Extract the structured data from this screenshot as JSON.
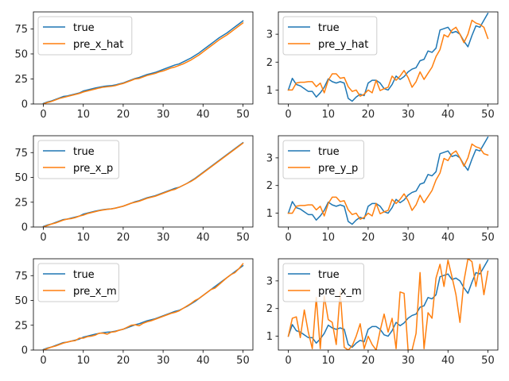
{
  "chart_data": [
    {
      "type": "line",
      "xlim": [
        -2.5,
        52.5
      ],
      "ylim": [
        0,
        92
      ],
      "xticks": [
        0,
        10,
        20,
        30,
        40,
        50
      ],
      "yticks": [
        0,
        25,
        50,
        75
      ],
      "legend": "top-left",
      "grid": false,
      "series": [
        {
          "name": "true",
          "color": "#1f77b4",
          "values": [
            0.5,
            2,
            3,
            4.5,
            6,
            7.5,
            8,
            9,
            10,
            11,
            13,
            14,
            15,
            16,
            16.8,
            17.5,
            18,
            18.3,
            19,
            20,
            21,
            22.5,
            24,
            25.5,
            26.5,
            28,
            29.5,
            30.5,
            31.5,
            33,
            34.5,
            36,
            37.5,
            39,
            40,
            42,
            44,
            46,
            48.5,
            51,
            54,
            57,
            60,
            63,
            66,
            68.5,
            71,
            74,
            77,
            80,
            83
          ]
        },
        {
          "name": "pre_x_hat",
          "color": "#ff7f0e",
          "values": [
            0,
            1.5,
            2.5,
            4,
            5.5,
            6.5,
            7.5,
            8.5,
            9.5,
            10.5,
            12,
            13,
            14,
            15,
            16,
            16.8,
            17.2,
            17.6,
            18.3,
            19.5,
            20.5,
            22,
            23.5,
            25,
            25.5,
            27,
            28.5,
            29.5,
            30.5,
            32,
            33,
            34.5,
            36,
            37,
            38.5,
            40,
            42,
            44,
            46.5,
            49,
            52,
            55,
            58,
            61,
            64,
            66.5,
            69,
            72,
            75,
            78,
            81
          ]
        }
      ]
    },
    {
      "type": "line",
      "xlim": [
        -2.5,
        52.5
      ],
      "ylim": [
        0.5,
        3.8
      ],
      "xticks": [
        0,
        10,
        20,
        30,
        40,
        50
      ],
      "yticks": [
        1,
        2,
        3
      ],
      "legend": "top-left",
      "grid": false,
      "series": [
        {
          "name": "true",
          "color": "#1f77b4",
          "values": [
            1.0,
            1.42,
            1.2,
            1.15,
            1.05,
            0.95,
            0.95,
            0.75,
            0.9,
            1.1,
            1.4,
            1.3,
            1.25,
            1.3,
            1.25,
            0.7,
            0.6,
            0.75,
            0.85,
            0.8,
            1.25,
            1.35,
            1.35,
            1.25,
            1.05,
            1.0,
            1.2,
            1.5,
            1.38,
            1.48,
            1.65,
            1.75,
            1.8,
            2.05,
            2.1,
            2.4,
            2.35,
            2.5,
            3.15,
            3.2,
            3.25,
            3.05,
            3.1,
            3.0,
            2.75,
            2.55,
            2.95,
            3.3,
            3.25,
            3.5,
            3.75
          ]
        },
        {
          "name": "pre_y_hat",
          "color": "#ff7f0e",
          "values": [
            1.0,
            1.0,
            1.25,
            1.28,
            1.28,
            1.3,
            1.3,
            1.12,
            1.25,
            0.9,
            1.35,
            1.58,
            1.58,
            1.42,
            1.45,
            1.12,
            0.95,
            1.0,
            0.78,
            0.85,
            1.0,
            0.9,
            1.35,
            0.98,
            1.05,
            1.1,
            1.5,
            1.35,
            1.5,
            1.7,
            1.45,
            1.1,
            1.3,
            1.65,
            1.38,
            1.6,
            1.82,
            2.2,
            2.45,
            2.98,
            2.9,
            3.15,
            3.25,
            3.0,
            2.7,
            3.0,
            3.5,
            3.4,
            3.35,
            3.25,
            2.85
          ]
        }
      ]
    },
    {
      "type": "line",
      "xlim": [
        -2.5,
        52.5
      ],
      "ylim": [
        0,
        92
      ],
      "xticks": [
        0,
        10,
        20,
        30,
        40,
        50
      ],
      "yticks": [
        0,
        25,
        50,
        75
      ],
      "legend": "top-left",
      "grid": false,
      "series": [
        {
          "name": "true",
          "color": "#1f77b4",
          "values": [
            0.5,
            2,
            3,
            4.5,
            6,
            7.5,
            8,
            9,
            10,
            11,
            13,
            14,
            15,
            16,
            16.8,
            17.5,
            18,
            18.3,
            19,
            20,
            21,
            22.5,
            24,
            25.5,
            26.5,
            28,
            29.5,
            30.5,
            31.5,
            33,
            34.5,
            36,
            37.5,
            39,
            40,
            42,
            44,
            46.5,
            49,
            52,
            55,
            58,
            61,
            64,
            67,
            70,
            73,
            76,
            79,
            82,
            85
          ]
        },
        {
          "name": "pre_x_p",
          "color": "#ff7f0e",
          "values": [
            0,
            1.5,
            3,
            4,
            5.5,
            7,
            8,
            8.5,
            9.5,
            11,
            12,
            13.5,
            14.5,
            15.5,
            16.5,
            17.2,
            17.8,
            18.2,
            19,
            20,
            21,
            22.5,
            24,
            25,
            26,
            27.5,
            29,
            30,
            31,
            32.5,
            34,
            35.5,
            37,
            38,
            40,
            42,
            44,
            46,
            48.5,
            51.5,
            54.5,
            57.5,
            60.5,
            63.5,
            66.5,
            69.5,
            72.5,
            75.5,
            78.5,
            81.5,
            84.5
          ]
        }
      ]
    },
    {
      "type": "line",
      "xlim": [
        -2.5,
        52.5
      ],
      "ylim": [
        0.5,
        3.8
      ],
      "xticks": [
        0,
        10,
        20,
        30,
        40,
        50
      ],
      "yticks": [
        1,
        2,
        3
      ],
      "legend": "top-left",
      "grid": false,
      "series": [
        {
          "name": "true",
          "color": "#1f77b4",
          "values": [
            1.0,
            1.42,
            1.2,
            1.15,
            1.05,
            0.95,
            0.95,
            0.75,
            0.9,
            1.1,
            1.4,
            1.3,
            1.25,
            1.3,
            1.25,
            0.7,
            0.6,
            0.75,
            0.85,
            0.8,
            1.25,
            1.35,
            1.35,
            1.25,
            1.05,
            1.0,
            1.2,
            1.5,
            1.38,
            1.48,
            1.65,
            1.75,
            1.8,
            2.05,
            2.1,
            2.4,
            2.35,
            2.5,
            3.15,
            3.2,
            3.25,
            3.05,
            3.1,
            3.0,
            2.75,
            2.55,
            2.95,
            3.3,
            3.25,
            3.5,
            3.75
          ]
        },
        {
          "name": "pre_y_p",
          "color": "#ff7f0e",
          "values": [
            1.0,
            1.0,
            1.25,
            1.28,
            1.28,
            1.3,
            1.3,
            1.12,
            1.25,
            0.9,
            1.35,
            1.58,
            1.58,
            1.42,
            1.45,
            1.12,
            0.95,
            1.0,
            0.78,
            0.85,
            1.0,
            0.9,
            1.35,
            0.98,
            1.05,
            1.1,
            1.5,
            1.35,
            1.5,
            1.7,
            1.45,
            1.1,
            1.3,
            1.65,
            1.38,
            1.6,
            1.82,
            2.2,
            2.45,
            2.98,
            2.9,
            3.15,
            3.25,
            3.0,
            2.7,
            3.0,
            3.5,
            3.4,
            3.35,
            3.15,
            3.1
          ]
        }
      ]
    },
    {
      "type": "line",
      "xlim": [
        -2.5,
        52.5
      ],
      "ylim": [
        0,
        92
      ],
      "xticks": [
        0,
        10,
        20,
        30,
        40,
        50
      ],
      "yticks": [
        0,
        25,
        50,
        75
      ],
      "legend": "top-left",
      "grid": false,
      "series": [
        {
          "name": "true",
          "color": "#1f77b4",
          "values": [
            0.5,
            2,
            3,
            4.5,
            6,
            7.5,
            8,
            9,
            10,
            11,
            13,
            14,
            15,
            16,
            16.8,
            17.5,
            18,
            18.3,
            19,
            20,
            21,
            22.5,
            24,
            25.5,
            26.5,
            28,
            29.5,
            30.5,
            31.5,
            33,
            34.5,
            36,
            37.5,
            39,
            40,
            42,
            44,
            46.5,
            49,
            52,
            55,
            58,
            61,
            64,
            67,
            70,
            73,
            76,
            79,
            82,
            85
          ]
        },
        {
          "name": "pre_x_m",
          "color": "#ff7f0e",
          "values": [
            0,
            1.5,
            3,
            4,
            5.5,
            7,
            8,
            9,
            9.5,
            12,
            12,
            13.5,
            14,
            15,
            17,
            17,
            16,
            18,
            18.5,
            20,
            21,
            23,
            25,
            25.5,
            24.5,
            27,
            28.5,
            29.5,
            31,
            32.5,
            34,
            35.5,
            37,
            38,
            39.5,
            42,
            44.5,
            47,
            50,
            52,
            55,
            58,
            61,
            62.5,
            66,
            69.5,
            73,
            76,
            78,
            82,
            87
          ]
        }
      ]
    },
    {
      "type": "line",
      "xlim": [
        -2.5,
        52.5
      ],
      "ylim": [
        0.5,
        3.8
      ],
      "xticks": [
        0,
        10,
        20,
        30,
        40,
        50
      ],
      "yticks": [
        1,
        2,
        3
      ],
      "legend": "top-left",
      "grid": false,
      "series": [
        {
          "name": "true",
          "color": "#1f77b4",
          "values": [
            1.0,
            1.42,
            1.2,
            1.15,
            1.05,
            0.95,
            0.95,
            0.75,
            0.9,
            1.1,
            1.4,
            1.3,
            1.25,
            1.3,
            1.25,
            0.7,
            0.6,
            0.75,
            0.85,
            0.8,
            1.25,
            1.35,
            1.35,
            1.25,
            1.05,
            1.0,
            1.2,
            1.5,
            1.38,
            1.48,
            1.65,
            1.75,
            1.8,
            2.05,
            2.1,
            2.4,
            2.35,
            2.5,
            3.15,
            3.2,
            3.25,
            3.05,
            3.1,
            3.0,
            2.75,
            2.55,
            2.95,
            3.3,
            3.25,
            3.5,
            3.75
          ]
        },
        {
          "name": "pre_x_m",
          "color": "#ff7f0e",
          "values": [
            1.0,
            1.65,
            1.7,
            0.95,
            1.95,
            1.15,
            0.55,
            2.4,
            0.55,
            2.45,
            1.6,
            1.5,
            0.7,
            2.6,
            0.6,
            0.5,
            0.65,
            1.0,
            1.45,
            0.55,
            1.0,
            0.7,
            0.5,
            1.2,
            1.8,
            1.15,
            1.65,
            0.55,
            2.6,
            2.55,
            0.5,
            0.5,
            1.1,
            3.3,
            0.55,
            1.85,
            1.65,
            3.1,
            3.6,
            2.8,
            3.75,
            3.15,
            2.5,
            1.5,
            3.0,
            3.8,
            3.7,
            2.8,
            3.6,
            2.5,
            3.35
          ]
        }
      ]
    }
  ]
}
